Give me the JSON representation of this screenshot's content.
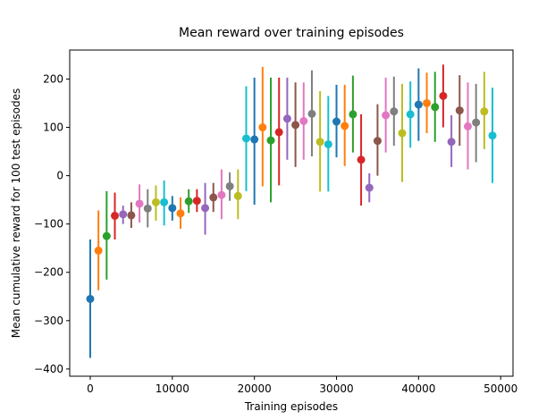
{
  "chart_data": {
    "type": "scatter",
    "title": "Mean reward over training episodes",
    "xlabel": "Training episodes",
    "ylabel": "Mean cumulative reward for 100 test episodes",
    "xlim": [
      -2500,
      51500
    ],
    "ylim": [
      -415,
      260
    ],
    "xticks": [
      0,
      10000,
      20000,
      30000,
      40000,
      50000
    ],
    "xtick_labels": [
      "0",
      "10000",
      "20000",
      "30000",
      "40000",
      "50000"
    ],
    "yticks": [
      -400,
      -300,
      -200,
      -100,
      0,
      100,
      200
    ],
    "ytick_labels": [
      "−400",
      "−300",
      "−200",
      "−100",
      "0",
      "100",
      "200"
    ],
    "grid": false,
    "error_bars": true,
    "palette": [
      "#1f77b4",
      "#ff7f0e",
      "#2ca02c",
      "#d62728",
      "#9467bd",
      "#8c564b",
      "#e377c2",
      "#7f7f7f",
      "#bcbd22",
      "#17becf"
    ],
    "points": [
      {
        "x": 0,
        "y": -255,
        "lo": -377,
        "hi": -132
      },
      {
        "x": 1000,
        "y": -155,
        "lo": -237,
        "hi": -72
      },
      {
        "x": 2000,
        "y": -125,
        "lo": -215,
        "hi": -32
      },
      {
        "x": 3000,
        "y": -83,
        "lo": -132,
        "hi": -35
      },
      {
        "x": 4000,
        "y": -80,
        "lo": -100,
        "hi": -62
      },
      {
        "x": 5000,
        "y": -82,
        "lo": -108,
        "hi": -55
      },
      {
        "x": 6000,
        "y": -58,
        "lo": -97,
        "hi": -18
      },
      {
        "x": 7000,
        "y": -68,
        "lo": -107,
        "hi": -28
      },
      {
        "x": 8000,
        "y": -55,
        "lo": -93,
        "hi": -20
      },
      {
        "x": 9000,
        "y": -55,
        "lo": -103,
        "hi": -10
      },
      {
        "x": 10000,
        "y": -67,
        "lo": -93,
        "hi": -42
      },
      {
        "x": 11000,
        "y": -78,
        "lo": -110,
        "hi": -45
      },
      {
        "x": 12000,
        "y": -53,
        "lo": -77,
        "hi": -28
      },
      {
        "x": 13000,
        "y": -52,
        "lo": -75,
        "hi": -28
      },
      {
        "x": 14000,
        "y": -67,
        "lo": -122,
        "hi": -15
      },
      {
        "x": 15000,
        "y": -45,
        "lo": -75,
        "hi": -15
      },
      {
        "x": 16000,
        "y": -40,
        "lo": -90,
        "hi": 13
      },
      {
        "x": 17000,
        "y": -22,
        "lo": -52,
        "hi": 7
      },
      {
        "x": 18000,
        "y": -42,
        "lo": -90,
        "hi": 13
      },
      {
        "x": 19000,
        "y": 77,
        "lo": -32,
        "hi": 185
      },
      {
        "x": 20000,
        "y": 75,
        "lo": -60,
        "hi": 203
      },
      {
        "x": 21000,
        "y": 100,
        "lo": -22,
        "hi": 225
      },
      {
        "x": 22000,
        "y": 73,
        "lo": -55,
        "hi": 203
      },
      {
        "x": 23000,
        "y": 90,
        "lo": -20,
        "hi": 203
      },
      {
        "x": 24000,
        "y": 118,
        "lo": 33,
        "hi": 203
      },
      {
        "x": 25000,
        "y": 105,
        "lo": 18,
        "hi": 193
      },
      {
        "x": 26000,
        "y": 113,
        "lo": 33,
        "hi": 193
      },
      {
        "x": 27000,
        "y": 128,
        "lo": 40,
        "hi": 218
      },
      {
        "x": 28000,
        "y": 70,
        "lo": -33,
        "hi": 175
      },
      {
        "x": 29000,
        "y": 65,
        "lo": -33,
        "hi": 165
      },
      {
        "x": 30000,
        "y": 112,
        "lo": 38,
        "hi": 188
      },
      {
        "x": 31000,
        "y": 103,
        "lo": 20,
        "hi": 188
      },
      {
        "x": 32000,
        "y": 127,
        "lo": 48,
        "hi": 207
      },
      {
        "x": 33000,
        "y": 33,
        "lo": -62,
        "hi": 127
      },
      {
        "x": 34000,
        "y": -25,
        "lo": -55,
        "hi": 5
      },
      {
        "x": 35000,
        "y": 72,
        "lo": 0,
        "hi": 148
      },
      {
        "x": 36000,
        "y": 125,
        "lo": 48,
        "hi": 203
      },
      {
        "x": 37000,
        "y": 133,
        "lo": 62,
        "hi": 205
      },
      {
        "x": 38000,
        "y": 88,
        "lo": -13,
        "hi": 190
      },
      {
        "x": 39000,
        "y": 127,
        "lo": 58,
        "hi": 195
      },
      {
        "x": 40000,
        "y": 147,
        "lo": 72,
        "hi": 222
      },
      {
        "x": 41000,
        "y": 150,
        "lo": 88,
        "hi": 213
      },
      {
        "x": 42000,
        "y": 142,
        "lo": 70,
        "hi": 215
      },
      {
        "x": 43000,
        "y": 165,
        "lo": 100,
        "hi": 230
      },
      {
        "x": 44000,
        "y": 70,
        "lo": 18,
        "hi": 125
      },
      {
        "x": 45000,
        "y": 135,
        "lo": 62,
        "hi": 208
      },
      {
        "x": 46000,
        "y": 102,
        "lo": 13,
        "hi": 193
      },
      {
        "x": 47000,
        "y": 110,
        "lo": 28,
        "hi": 190
      },
      {
        "x": 48000,
        "y": 133,
        "lo": 55,
        "hi": 215
      },
      {
        "x": 49000,
        "y": 83,
        "lo": -15,
        "hi": 182
      }
    ]
  }
}
